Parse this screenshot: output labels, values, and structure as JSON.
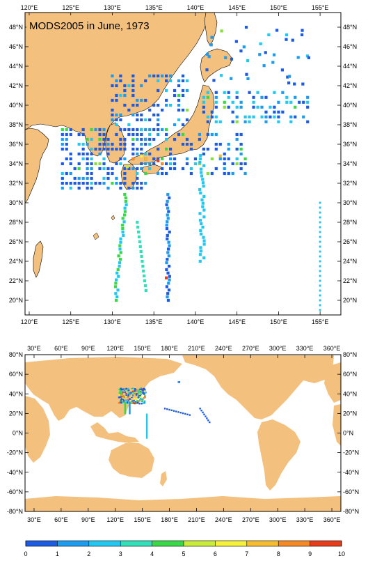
{
  "title": "MODS2005 in June, 1973",
  "colors": {
    "land": "#f4c07e",
    "ocean": "#ffffff",
    "frame": "#000000"
  },
  "top_map": {
    "lon_range": [
      119.5,
      157.5
    ],
    "lat_range": [
      18.5,
      49.5
    ],
    "lon_ticks": [
      "120°E",
      "125°E",
      "130°E",
      "135°E",
      "140°E",
      "145°E",
      "150°E",
      "155°E"
    ],
    "lat_ticks": [
      "20°N",
      "22°N",
      "24°N",
      "26°N",
      "28°N",
      "30°N",
      "32°N",
      "34°N",
      "36°N",
      "38°N",
      "40°N",
      "42°N",
      "44°N",
      "46°N",
      "48°N"
    ]
  },
  "bottom_map": {
    "lon_range": [
      20,
      370
    ],
    "lat_range": [
      -80,
      80
    ],
    "lon_ticks": [
      "30°E",
      "60°E",
      "90°E",
      "120°E",
      "150°E",
      "180°E",
      "210°E",
      "240°E",
      "270°E",
      "300°E",
      "330°E",
      "360°E"
    ],
    "lat_ticks": [
      "80°N",
      "60°N",
      "40°N",
      "20°N",
      "0°N",
      "-20°N",
      "-40°N",
      "-60°N",
      "-80°N"
    ]
  },
  "colorbar": {
    "labels": [
      "0",
      "1",
      "2",
      "3",
      "4",
      "5",
      "6",
      "7",
      "8",
      "9",
      "10"
    ],
    "colors": [
      "#1d5be3",
      "#1b9cf0",
      "#23c8f0",
      "#2fe0b8",
      "#38d848",
      "#86e13a",
      "#c8ec38",
      "#f5f03a",
      "#f6be2e",
      "#f58a25",
      "#e63c1c"
    ]
  }
}
